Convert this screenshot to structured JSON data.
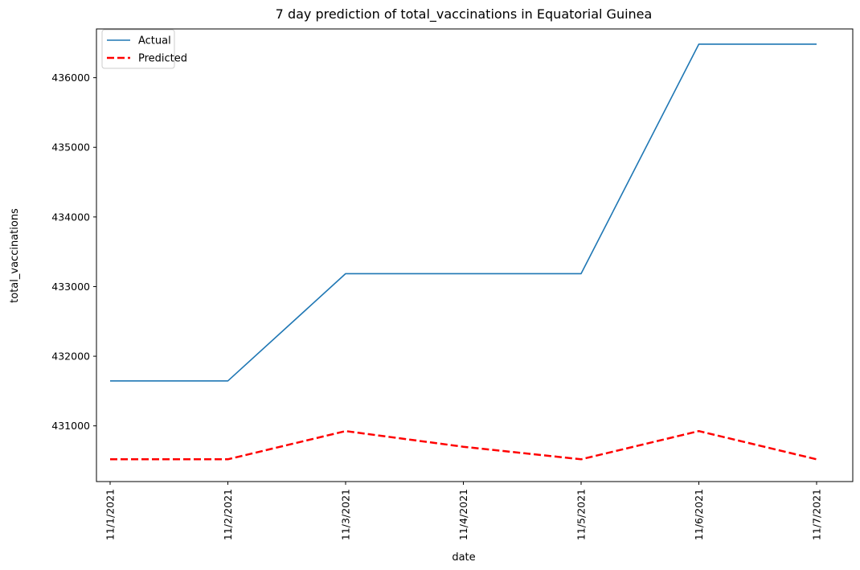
{
  "chart_data": {
    "type": "line",
    "title": "7 day prediction of total_vaccinations in Equatorial Guinea",
    "xlabel": "date",
    "ylabel": "total_vaccinations",
    "categories": [
      "11/1/2021",
      "11/2/2021",
      "11/3/2021",
      "11/4/2021",
      "11/5/2021",
      "11/6/2021",
      "11/7/2021"
    ],
    "ylim": [
      430200,
      436700
    ],
    "yticks": [
      431000,
      432000,
      433000,
      434000,
      435000,
      436000
    ],
    "grid": false,
    "legend_position": "upper-left",
    "series": [
      {
        "name": "Actual",
        "color": "#1f77b4",
        "style": "solid",
        "values": [
          431645,
          431645,
          433186,
          433186,
          433186,
          436482,
          436482
        ]
      },
      {
        "name": "Predicted",
        "color": "#ff0000",
        "style": "dashed",
        "values": [
          430520,
          430520,
          430925,
          430700,
          430520,
          430925,
          430520
        ]
      }
    ]
  }
}
